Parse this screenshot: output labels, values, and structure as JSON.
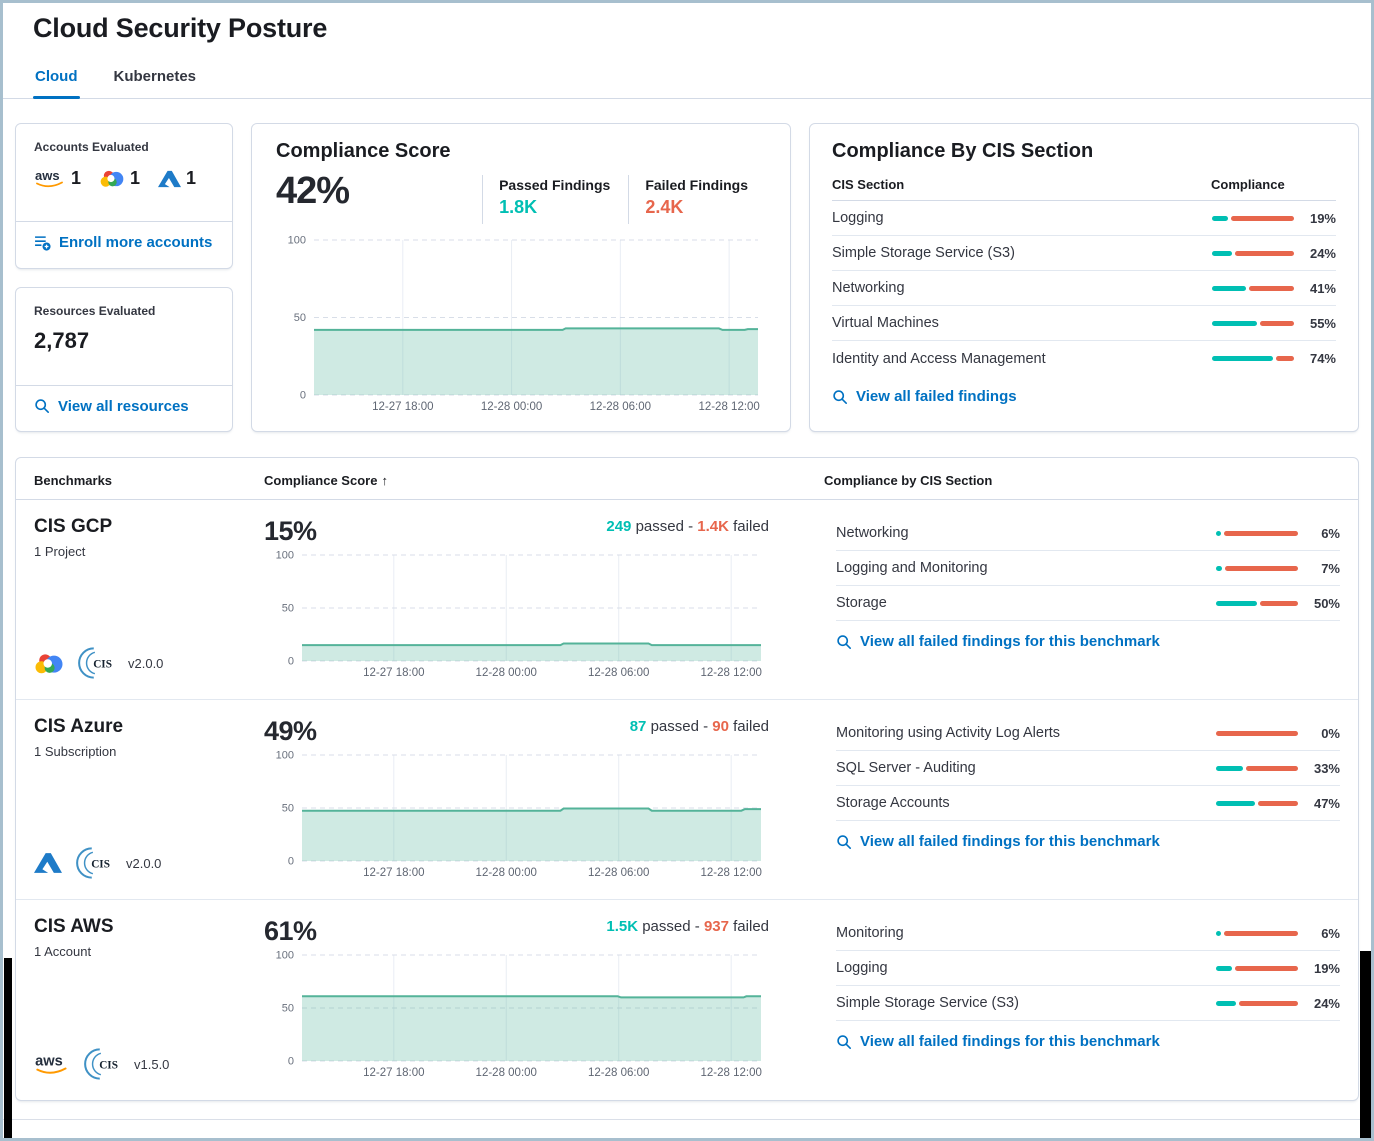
{
  "page": {
    "title": "Cloud Security Posture"
  },
  "tabs": {
    "cloud": "Cloud",
    "kubernetes": "Kubernetes"
  },
  "labels": {
    "passed_word": "passed",
    "failed_word": "failed",
    "sep": "-",
    "sort_arrow": "↑"
  },
  "accounts_card": {
    "title": "Accounts Evaluated",
    "providers": [
      {
        "icon": "aws-logo",
        "count": "1"
      },
      {
        "icon": "gcp-logo",
        "count": "1"
      },
      {
        "icon": "azure-logo",
        "count": "1"
      }
    ],
    "link": "Enroll more accounts"
  },
  "resources_card": {
    "title": "Resources Evaluated",
    "value": "2,787",
    "link": "View all resources"
  },
  "score_card": {
    "title": "Compliance Score",
    "score": "42%",
    "passed_label": "Passed Findings",
    "passed_value": "1.8K",
    "failed_label": "Failed Findings",
    "failed_value": "2.4K"
  },
  "cis_card": {
    "title": "Compliance By CIS Section",
    "col_section": "CIS Section",
    "col_compliance": "Compliance",
    "rows": [
      {
        "name": "Logging",
        "pct": 19,
        "pct_label": "19%"
      },
      {
        "name": "Simple Storage Service (S3)",
        "pct": 24,
        "pct_label": "24%"
      },
      {
        "name": "Networking",
        "pct": 41,
        "pct_label": "41%"
      },
      {
        "name": "Virtual Machines",
        "pct": 55,
        "pct_label": "55%"
      },
      {
        "name": "Identity and Access Management",
        "pct": 74,
        "pct_label": "74%"
      }
    ],
    "link": "View all failed findings"
  },
  "benchmarks": {
    "col_benchmarks": "Benchmarks",
    "col_score": "Compliance Score",
    "col_sections": "Compliance by CIS Section",
    "rows": [
      {
        "name": "CIS GCP",
        "scope": "1 Project",
        "version": "v2.0.0",
        "score": "15%",
        "passed": "249",
        "failed": "1.4K",
        "sections": [
          {
            "name": "Networking",
            "pct": 6,
            "pct_label": "6%"
          },
          {
            "name": "Logging and Monitoring",
            "pct": 7,
            "pct_label": "7%"
          },
          {
            "name": "Storage",
            "pct": 50,
            "pct_label": "50%"
          }
        ],
        "link": "View all failed findings for this benchmark"
      },
      {
        "name": "CIS Azure",
        "scope": "1 Subscription",
        "version": "v2.0.0",
        "score": "49%",
        "passed": "87",
        "failed": "90",
        "sections": [
          {
            "name": "Monitoring using Activity Log Alerts",
            "pct": 0,
            "pct_label": "0%"
          },
          {
            "name": "SQL Server - Auditing",
            "pct": 33,
            "pct_label": "33%"
          },
          {
            "name": "Storage Accounts",
            "pct": 47,
            "pct_label": "47%"
          }
        ],
        "link": "View all failed findings for this benchmark"
      },
      {
        "name": "CIS AWS",
        "scope": "1 Account",
        "version": "v1.5.0",
        "score": "61%",
        "passed": "1.5K",
        "failed": "937",
        "sections": [
          {
            "name": "Monitoring",
            "pct": 6,
            "pct_label": "6%"
          },
          {
            "name": "Logging",
            "pct": 19,
            "pct_label": "19%"
          },
          {
            "name": "Simple Storage Service (S3)",
            "pct": 24,
            "pct_label": "24%"
          }
        ],
        "link": "View all failed findings for this benchmark"
      }
    ]
  },
  "chart_data": [
    {
      "id": "overall-compliance-trend",
      "type": "area",
      "title": "Compliance Score 42% over time",
      "ylim": [
        0,
        100
      ],
      "yticks": [
        0,
        50,
        100
      ],
      "x_ticks": [
        {
          "f": 0.2,
          "label": "12-27 18:00"
        },
        {
          "f": 0.445,
          "label": "12-28 00:00"
        },
        {
          "f": 0.69,
          "label": "12-28 06:00"
        },
        {
          "f": 0.935,
          "label": "12-28 12:00"
        }
      ],
      "points": [
        [
          0,
          42
        ],
        [
          0.56,
          42
        ],
        [
          0.567,
          43
        ],
        [
          0.912,
          43
        ],
        [
          0.92,
          42
        ],
        [
          0.97,
          42
        ],
        [
          0.977,
          42.5
        ],
        [
          1,
          42.5
        ]
      ],
      "line_color": "#54b399",
      "fill_color": "rgba(84,179,153,0.28)"
    },
    {
      "id": "cis-gcp-trend",
      "type": "area",
      "title": "CIS GCP score 15% over time",
      "ylim": [
        0,
        100
      ],
      "yticks": [
        0,
        50,
        100
      ],
      "x_ticks": [
        {
          "f": 0.2,
          "label": "12-27 18:00"
        },
        {
          "f": 0.445,
          "label": "12-28 00:00"
        },
        {
          "f": 0.69,
          "label": "12-28 06:00"
        },
        {
          "f": 0.935,
          "label": "12-28 12:00"
        }
      ],
      "points": [
        [
          0,
          15
        ],
        [
          0.563,
          15
        ],
        [
          0.57,
          16.5
        ],
        [
          0.755,
          16.5
        ],
        [
          0.762,
          15
        ],
        [
          1,
          15
        ]
      ],
      "line_color": "#54b399",
      "fill_color": "rgba(84,179,153,0.28)"
    },
    {
      "id": "cis-azure-trend",
      "type": "area",
      "title": "CIS Azure score 49% over time",
      "ylim": [
        0,
        100
      ],
      "yticks": [
        0,
        50,
        100
      ],
      "x_ticks": [
        {
          "f": 0.2,
          "label": "12-27 18:00"
        },
        {
          "f": 0.445,
          "label": "12-28 00:00"
        },
        {
          "f": 0.69,
          "label": "12-28 06:00"
        },
        {
          "f": 0.935,
          "label": "12-28 12:00"
        }
      ],
      "points": [
        [
          0,
          47.5
        ],
        [
          0.563,
          47.5
        ],
        [
          0.57,
          49.5
        ],
        [
          0.755,
          49.5
        ],
        [
          0.762,
          47.5
        ],
        [
          0.957,
          47.5
        ],
        [
          0.965,
          49
        ],
        [
          1,
          49
        ]
      ],
      "line_color": "#54b399",
      "fill_color": "rgba(84,179,153,0.28)"
    },
    {
      "id": "cis-aws-trend",
      "type": "area",
      "title": "CIS AWS score 61% over time",
      "ylim": [
        0,
        100
      ],
      "yticks": [
        0,
        50,
        100
      ],
      "x_ticks": [
        {
          "f": 0.2,
          "label": "12-27 18:00"
        },
        {
          "f": 0.445,
          "label": "12-28 00:00"
        },
        {
          "f": 0.69,
          "label": "12-28 06:00"
        },
        {
          "f": 0.935,
          "label": "12-28 12:00"
        }
      ],
      "points": [
        [
          0,
          61
        ],
        [
          0.688,
          61
        ],
        [
          0.695,
          60
        ],
        [
          0.962,
          60
        ],
        [
          0.968,
          61
        ],
        [
          1,
          61
        ]
      ],
      "line_color": "#54b399",
      "fill_color": "rgba(84,179,153,0.28)"
    }
  ],
  "colors": {
    "link_blue": "#0071c2",
    "tab_blue": "#0071c2",
    "passed_teal": "#00bfb3",
    "failed_salmon": "#e7664c",
    "chart_line": "#54b399",
    "card_border": "#d3dae6"
  }
}
